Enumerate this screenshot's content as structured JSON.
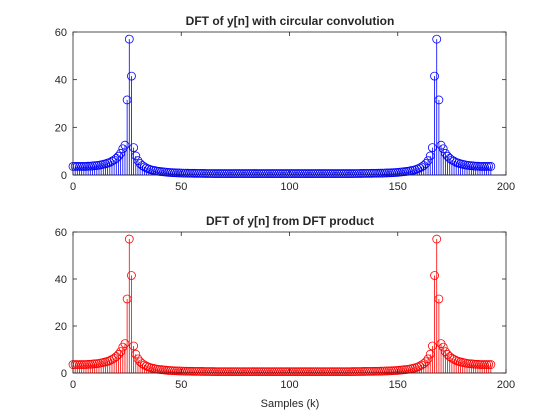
{
  "figure": {
    "background": "#ffffff",
    "axes_color": "#262626"
  },
  "chart_data": [
    {
      "type": "stem",
      "title": "DFT of y[n] with circular convolution",
      "xlabel": "",
      "ylabel": "",
      "xlim": [
        0,
        200
      ],
      "ylim": [
        0,
        60
      ],
      "xticks": [
        "0",
        "50",
        "100",
        "150",
        "200"
      ],
      "yticks": [
        "0",
        "20",
        "40",
        "60"
      ],
      "color": "#0000ff",
      "marker": "open-circle",
      "x_start": 0,
      "y": [
        3.6,
        3.6,
        3.6,
        3.6,
        3.6,
        3.6,
        3.6,
        3.7,
        3.7,
        3.8,
        3.9,
        4.0,
        4.1,
        4.3,
        4.5,
        4.7,
        5.0,
        5.3,
        5.8,
        6.3,
        7.0,
        7.9,
        9.1,
        11.0,
        12.5,
        31.5,
        57.0,
        41.5,
        11.5,
        8.0,
        6.0,
        4.8,
        4.0,
        3.4,
        2.9,
        2.5,
        2.2,
        2.0,
        1.8,
        1.6,
        1.5,
        1.4,
        1.3,
        1.2,
        1.1,
        1.05,
        1.0,
        0.95,
        0.9,
        0.87,
        0.84,
        0.8,
        0.78,
        0.76,
        0.74,
        0.72,
        0.7,
        0.69,
        0.68,
        0.67,
        0.66,
        0.65,
        0.64,
        0.63,
        0.62,
        0.61,
        0.6,
        0.6,
        0.6,
        0.6,
        0.6,
        0.6,
        0.6,
        0.6,
        0.6,
        0.6,
        0.6,
        0.6,
        0.6,
        0.6,
        0.6,
        0.6,
        0.6,
        0.6,
        0.6,
        0.6,
        0.6,
        0.6,
        0.6,
        0.6,
        0.6,
        0.6,
        0.6,
        0.6,
        0.6,
        0.6,
        0.6,
        0.6,
        0.6,
        0.6,
        0.6,
        0.6,
        0.6,
        0.6,
        0.6,
        0.6,
        0.6,
        0.6,
        0.6,
        0.6,
        0.6,
        0.6,
        0.6,
        0.6,
        0.6,
        0.6,
        0.6,
        0.6,
        0.6,
        0.6,
        0.6,
        0.6,
        0.6,
        0.6,
        0.6,
        0.6,
        0.6,
        0.6,
        0.6,
        0.61,
        0.62,
        0.63,
        0.64,
        0.65,
        0.66,
        0.67,
        0.68,
        0.69,
        0.7,
        0.72,
        0.74,
        0.76,
        0.78,
        0.8,
        0.84,
        0.87,
        0.9,
        0.95,
        1.0,
        1.05,
        1.1,
        1.2,
        1.3,
        1.4,
        1.5,
        1.6,
        1.8,
        2.0,
        2.2,
        2.5,
        2.9,
        3.4,
        4.0,
        4.8,
        6.0,
        8.0,
        11.5,
        41.5,
        57.0,
        31.5,
        12.5,
        11.0,
        9.1,
        7.9,
        7.0,
        6.3,
        5.8,
        5.3,
        5.0,
        4.7,
        4.5,
        4.3,
        4.1,
        4.0,
        3.9,
        3.8,
        3.7,
        3.7,
        3.6,
        3.6,
        3.6,
        3.6,
        3.6,
        3.6
      ]
    },
    {
      "type": "stem",
      "title": "DFT of y[n] from DFT product",
      "xlabel": "Samples (k)",
      "ylabel": "",
      "xlim": [
        0,
        200
      ],
      "ylim": [
        0,
        60
      ],
      "xticks": [
        "0",
        "50",
        "100",
        "150",
        "200"
      ],
      "yticks": [
        "0",
        "20",
        "40",
        "60"
      ],
      "color": "#ff0000",
      "marker": "open-circle",
      "x_start": 0,
      "y": [
        3.6,
        3.6,
        3.6,
        3.6,
        3.6,
        3.6,
        3.6,
        3.7,
        3.7,
        3.8,
        3.9,
        4.0,
        4.1,
        4.3,
        4.5,
        4.7,
        5.0,
        5.3,
        5.8,
        6.3,
        7.0,
        7.9,
        9.1,
        11.0,
        12.5,
        31.5,
        57.0,
        41.5,
        11.5,
        8.0,
        6.0,
        4.8,
        4.0,
        3.4,
        2.9,
        2.5,
        2.2,
        2.0,
        1.8,
        1.6,
        1.5,
        1.4,
        1.3,
        1.2,
        1.1,
        1.05,
        1.0,
        0.95,
        0.9,
        0.87,
        0.84,
        0.8,
        0.78,
        0.76,
        0.74,
        0.72,
        0.7,
        0.69,
        0.68,
        0.67,
        0.66,
        0.65,
        0.64,
        0.63,
        0.62,
        0.61,
        0.6,
        0.6,
        0.6,
        0.6,
        0.6,
        0.6,
        0.6,
        0.6,
        0.6,
        0.6,
        0.6,
        0.6,
        0.6,
        0.6,
        0.6,
        0.6,
        0.6,
        0.6,
        0.6,
        0.6,
        0.6,
        0.6,
        0.6,
        0.6,
        0.6,
        0.6,
        0.6,
        0.6,
        0.6,
        0.6,
        0.6,
        0.6,
        0.6,
        0.6,
        0.6,
        0.6,
        0.6,
        0.6,
        0.6,
        0.6,
        0.6,
        0.6,
        0.6,
        0.6,
        0.6,
        0.6,
        0.6,
        0.6,
        0.6,
        0.6,
        0.6,
        0.6,
        0.6,
        0.6,
        0.6,
        0.6,
        0.6,
        0.6,
        0.6,
        0.6,
        0.6,
        0.6,
        0.6,
        0.61,
        0.62,
        0.63,
        0.64,
        0.65,
        0.66,
        0.67,
        0.68,
        0.69,
        0.7,
        0.72,
        0.74,
        0.76,
        0.78,
        0.8,
        0.84,
        0.87,
        0.9,
        0.95,
        1.0,
        1.05,
        1.1,
        1.2,
        1.3,
        1.4,
        1.5,
        1.6,
        1.8,
        2.0,
        2.2,
        2.5,
        2.9,
        3.4,
        4.0,
        4.8,
        6.0,
        8.0,
        11.5,
        41.5,
        57.0,
        31.5,
        12.5,
        11.0,
        9.1,
        7.9,
        7.0,
        6.3,
        5.8,
        5.3,
        5.0,
        4.7,
        4.5,
        4.3,
        4.1,
        4.0,
        3.9,
        3.8,
        3.7,
        3.7,
        3.6,
        3.6,
        3.6,
        3.6,
        3.6,
        3.6
      ]
    }
  ]
}
